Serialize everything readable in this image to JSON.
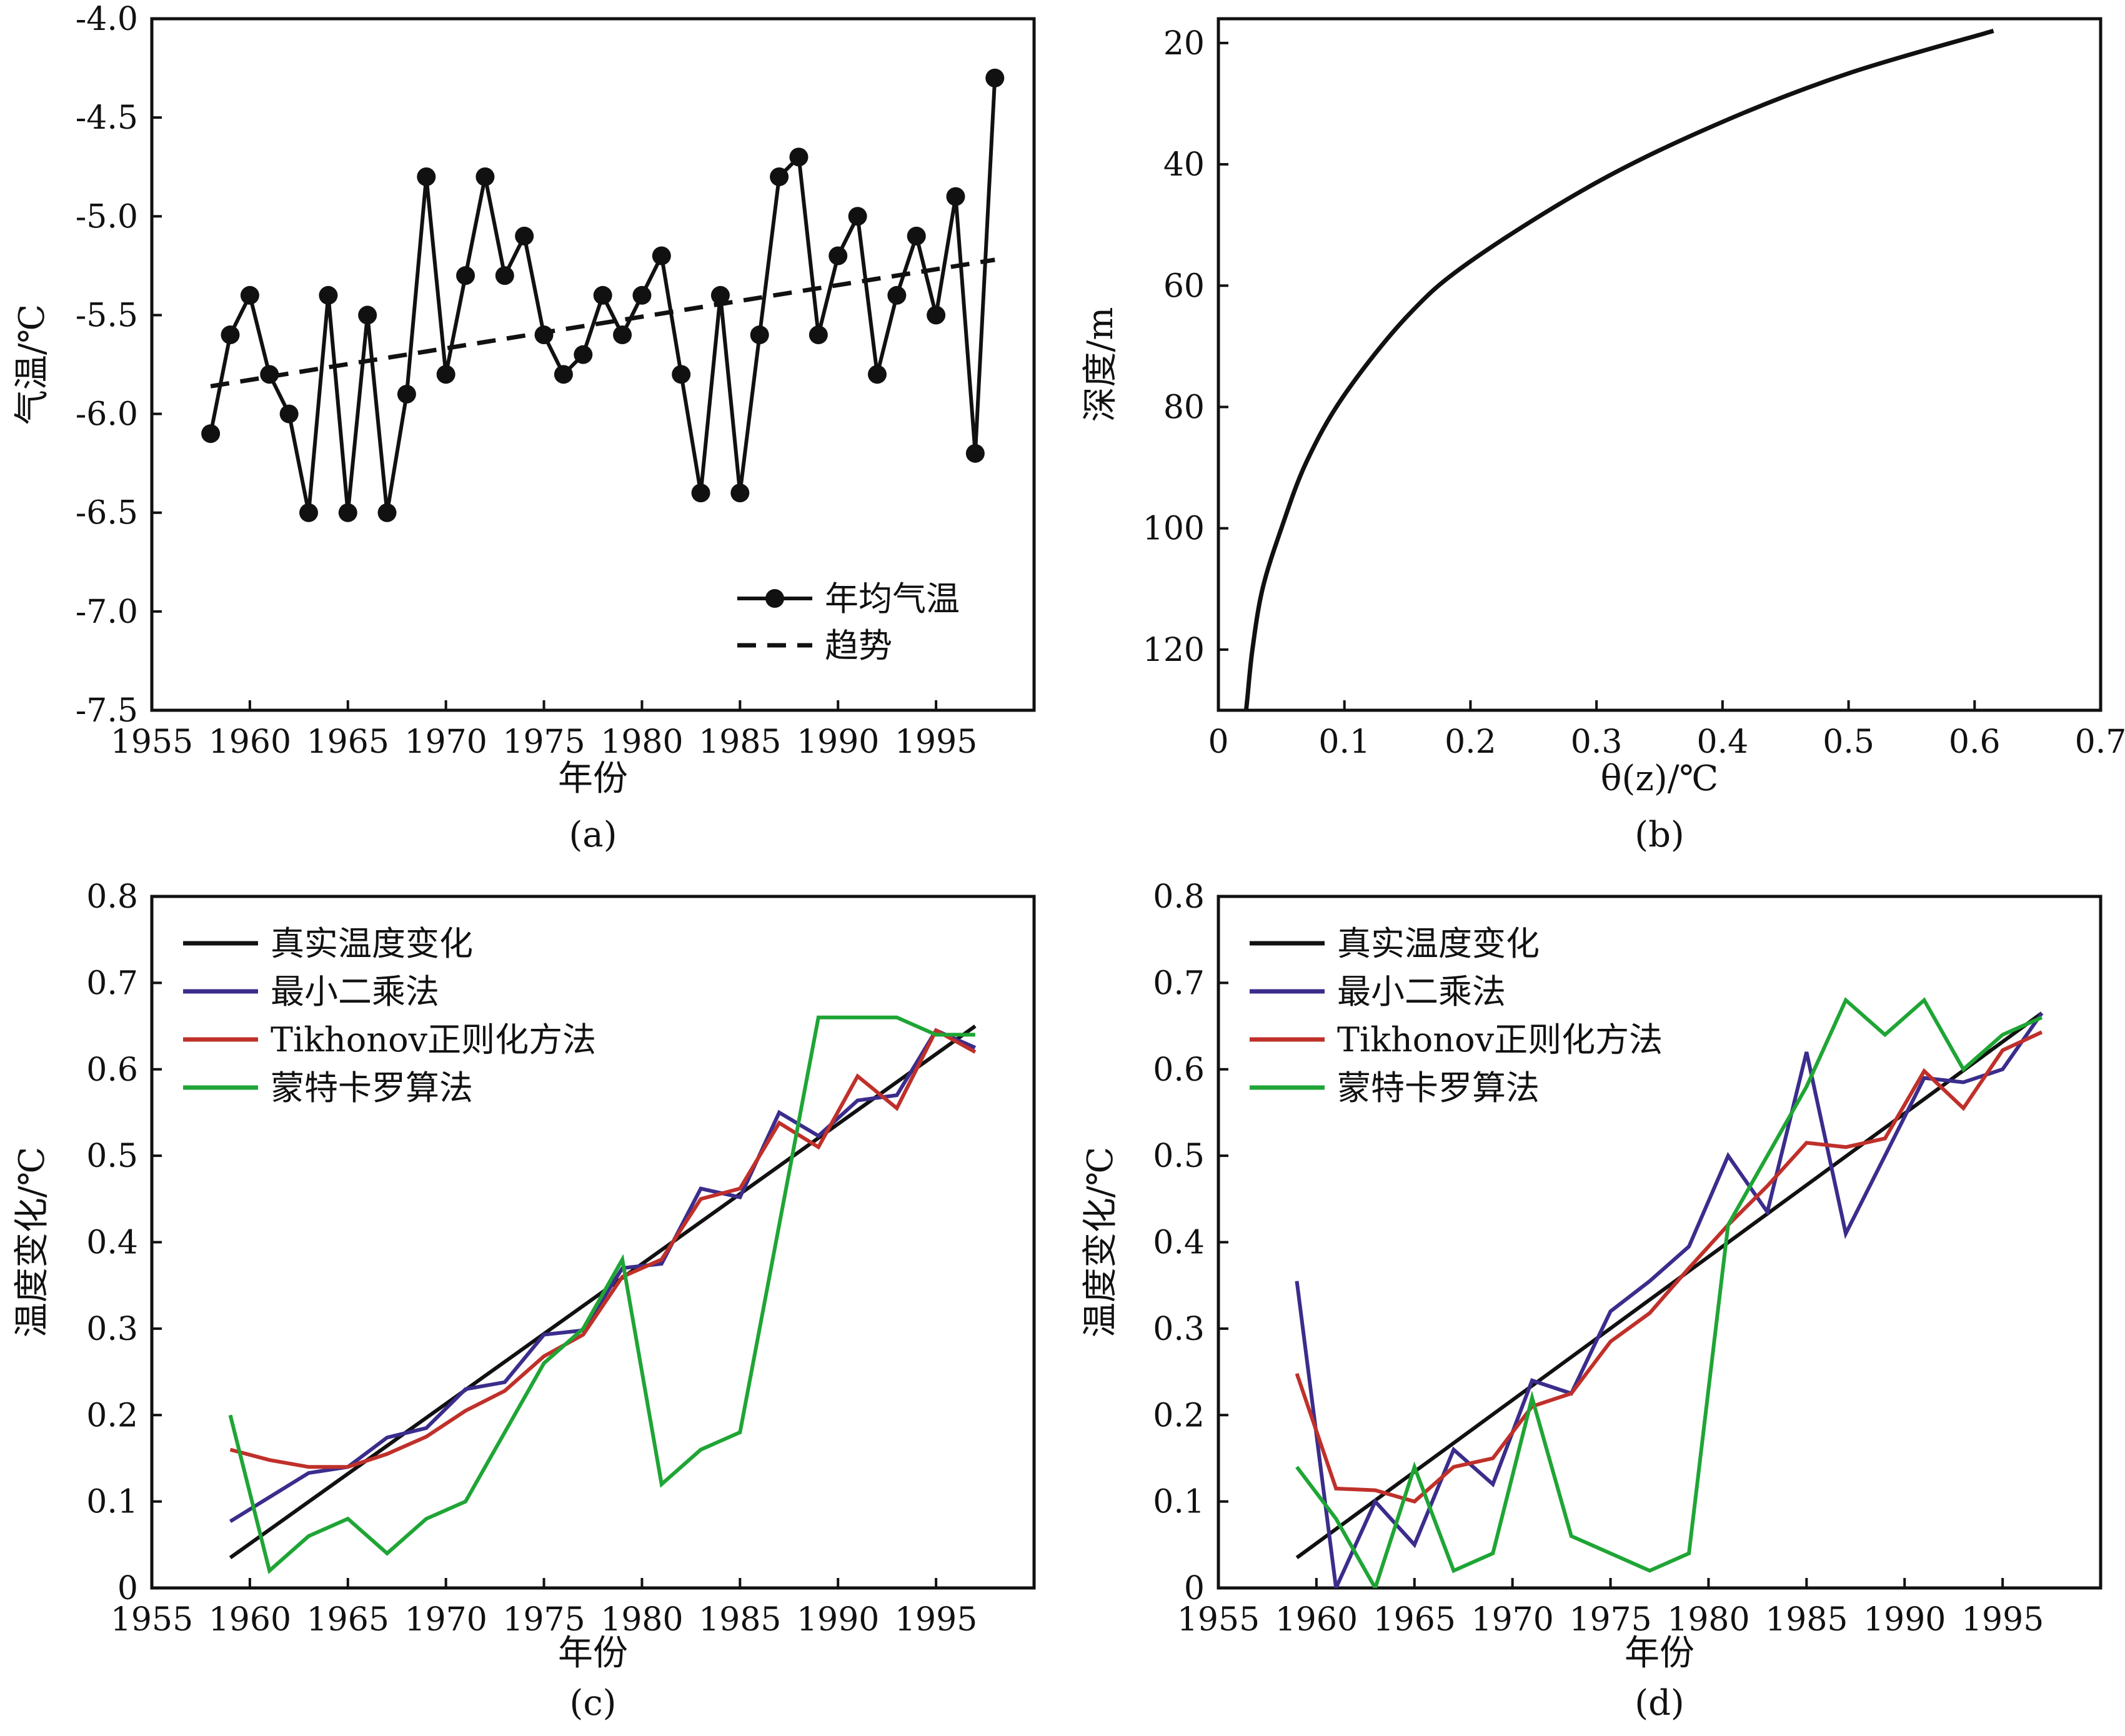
{
  "chart_data": [
    {
      "panel": "(a)",
      "type": "line",
      "xlabel": "年份",
      "ylabel": "气温/℃",
      "xlim": [
        1955,
        2000
      ],
      "ylim": [
        -7.5,
        -4.0
      ],
      "xticks": [
        1955,
        1960,
        1965,
        1970,
        1975,
        1980,
        1985,
        1990,
        1995
      ],
      "xtick_labels": [
        "1955",
        "1960",
        "1965",
        "1970",
        "1975",
        "1980",
        "1985",
        "1990",
        "1995"
      ],
      "yticks": [
        -4.0,
        -4.5,
        -5.0,
        -5.5,
        -6.0,
        -6.5,
        -7.0,
        -7.5
      ],
      "ytick_labels": [
        "-4.0",
        "-4.5",
        "-5.0",
        "-5.5",
        "-6.0",
        "-6.5",
        "-7.0",
        "-7.5"
      ],
      "legend_position": "bottom-right",
      "series": [
        {
          "name": "年均气温",
          "style": "solid-markers",
          "color": "#111111",
          "x": [
            1958,
            1959,
            1960,
            1961,
            1962,
            1963,
            1964,
            1965,
            1966,
            1967,
            1968,
            1969,
            1970,
            1971,
            1972,
            1973,
            1974,
            1975,
            1976,
            1977,
            1978,
            1979,
            1980,
            1981,
            1982,
            1983,
            1984,
            1985,
            1986,
            1987,
            1988,
            1989,
            1990,
            1991,
            1992,
            1993,
            1994,
            1995,
            1996,
            1997,
            1998
          ],
          "y": [
            -6.1,
            -5.6,
            -5.4,
            -5.8,
            -6.0,
            -6.5,
            -5.4,
            -6.5,
            -5.5,
            -6.5,
            -5.9,
            -4.8,
            -5.8,
            -5.3,
            -4.8,
            -5.3,
            -5.1,
            -5.6,
            -5.8,
            -5.7,
            -5.4,
            -5.6,
            -5.4,
            -5.2,
            -5.8,
            -6.4,
            -5.4,
            -6.4,
            -5.6,
            -4.8,
            -4.7,
            -5.6,
            -5.2,
            -5.0,
            -5.8,
            -5.4,
            -5.1,
            -5.5,
            -4.9,
            -6.2,
            -4.3
          ]
        },
        {
          "name": "趋势",
          "style": "dashed",
          "color": "#111111",
          "x": [
            1958,
            1998
          ],
          "y": [
            -5.86,
            -5.22
          ]
        }
      ],
      "caption": "(a)"
    },
    {
      "panel": "(b)",
      "type": "line",
      "xlabel": "θ(z)/℃",
      "ylabel": "深度/m",
      "xlim": [
        0,
        0.7
      ],
      "ylim": [
        130,
        16
      ],
      "y_inverted": true,
      "xticks": [
        0,
        0.1,
        0.2,
        0.3,
        0.4,
        0.5,
        0.6,
        0.7
      ],
      "xtick_labels": [
        "0",
        "0.1",
        "0.2",
        "0.3",
        "0.4",
        "0.5",
        "0.6",
        "0.7"
      ],
      "yticks": [
        20,
        40,
        60,
        80,
        100,
        120
      ],
      "ytick_labels": [
        "20",
        "40",
        "60",
        "80",
        "100",
        "120"
      ],
      "series": [
        {
          "color": "#111111",
          "x": [
            0.615,
            0.5,
            0.4,
            0.3,
            0.2,
            0.15,
            0.1,
            0.07,
            0.05,
            0.035,
            0.027,
            0.023,
            0.022
          ],
          "y": [
            18,
            25,
            33,
            43,
            56,
            65,
            78,
            89,
            100,
            110,
            120,
            128,
            130
          ]
        }
      ],
      "caption": "(b)"
    },
    {
      "panel": "(c)",
      "type": "line",
      "xlabel": "年份",
      "ylabel": "温度变化/℃",
      "xlim": [
        1955,
        2000
      ],
      "ylim": [
        0,
        0.8
      ],
      "xticks": [
        1955,
        1960,
        1965,
        1970,
        1975,
        1980,
        1985,
        1990,
        1995
      ],
      "xtick_labels": [
        "1955",
        "1960",
        "1965",
        "1970",
        "1975",
        "1980",
        "1985",
        "1990",
        "1995"
      ],
      "yticks": [
        0,
        0.1,
        0.2,
        0.3,
        0.4,
        0.5,
        0.6,
        0.7,
        0.8
      ],
      "ytick_labels": [
        "0",
        "0.1",
        "0.2",
        "0.3",
        "0.4",
        "0.5",
        "0.6",
        "0.7",
        "0.8"
      ],
      "legend_position": "top-left",
      "series": [
        {
          "name": "真实温度变化",
          "color": "#111111",
          "x": [
            1959,
            1997
          ],
          "y": [
            0.035,
            0.65
          ]
        },
        {
          "name": "最小二乘法",
          "color": "#3a2d8c",
          "x": [
            1959,
            1961,
            1963,
            1965,
            1967,
            1969,
            1971,
            1973,
            1975,
            1977,
            1979,
            1981,
            1983,
            1985,
            1987,
            1989,
            1991,
            1993,
            1995,
            1997
          ],
          "y": [
            0.077,
            0.105,
            0.133,
            0.14,
            0.174,
            0.185,
            0.23,
            0.238,
            0.293,
            0.298,
            0.37,
            0.375,
            0.462,
            0.452,
            0.55,
            0.523,
            0.564,
            0.57,
            0.645,
            0.625
          ]
        },
        {
          "name": "Tikhonov正则化方法",
          "color": "#c0302a",
          "x": [
            1959,
            1961,
            1963,
            1965,
            1967,
            1969,
            1971,
            1973,
            1975,
            1977,
            1979,
            1981,
            1983,
            1985,
            1987,
            1989,
            1991,
            1993,
            1995,
            1997
          ],
          "y": [
            0.16,
            0.148,
            0.14,
            0.14,
            0.155,
            0.175,
            0.205,
            0.228,
            0.268,
            0.293,
            0.36,
            0.38,
            0.45,
            0.462,
            0.538,
            0.51,
            0.592,
            0.555,
            0.645,
            0.62
          ]
        },
        {
          "name": "蒙特卡罗算法",
          "color": "#1fa535",
          "x": [
            1959,
            1961,
            1963,
            1965,
            1967,
            1969,
            1971,
            1973,
            1975,
            1977,
            1979,
            1981,
            1983,
            1985,
            1987,
            1989,
            1991,
            1993,
            1995,
            1997
          ],
          "y": [
            0.2,
            0.02,
            0.06,
            0.08,
            0.04,
            0.08,
            0.1,
            0.18,
            0.26,
            0.3,
            0.38,
            0.12,
            0.16,
            0.18,
            0.42,
            0.66,
            0.66,
            0.66,
            0.64,
            0.64
          ]
        }
      ],
      "caption": "(c)"
    },
    {
      "panel": "(d)",
      "type": "line",
      "xlabel": "年份",
      "ylabel": "温度变化/℃",
      "xlim": [
        1955,
        2000
      ],
      "ylim": [
        0,
        0.8
      ],
      "xticks": [
        1955,
        1960,
        1965,
        1970,
        1975,
        1980,
        1985,
        1990,
        1995
      ],
      "xtick_labels": [
        "1955",
        "1960",
        "1965",
        "1970",
        "1975",
        "1980",
        "1985",
        "1990",
        "1995"
      ],
      "yticks": [
        0,
        0.1,
        0.2,
        0.3,
        0.4,
        0.5,
        0.6,
        0.7,
        0.8
      ],
      "ytick_labels": [
        "0",
        "0.1",
        "0.2",
        "0.3",
        "0.4",
        "0.5",
        "0.6",
        "0.7",
        "0.8"
      ],
      "legend_position": "top-left",
      "series": [
        {
          "name": "真实温度变化",
          "color": "#111111",
          "x": [
            1959,
            1997
          ],
          "y": [
            0.035,
            0.665
          ]
        },
        {
          "name": "最小二乘法",
          "color": "#3a2d8c",
          "x": [
            1959,
            1961,
            1963,
            1965,
            1967,
            1969,
            1971,
            1973,
            1975,
            1977,
            1979,
            1981,
            1983,
            1985,
            1987,
            1989,
            1991,
            1993,
            1995,
            1997
          ],
          "y": [
            0.355,
            0.0,
            0.1,
            0.05,
            0.16,
            0.12,
            0.24,
            0.225,
            0.32,
            0.355,
            0.395,
            0.5,
            0.435,
            0.62,
            0.41,
            0.5,
            0.59,
            0.585,
            0.6,
            0.665
          ]
        },
        {
          "name": "Tikhonov正则化方法",
          "color": "#c0302a",
          "x": [
            1959,
            1961,
            1963,
            1965,
            1967,
            1969,
            1971,
            1973,
            1975,
            1977,
            1979,
            1981,
            1983,
            1985,
            1987,
            1989,
            1991,
            1993,
            1995,
            1997
          ],
          "y": [
            0.248,
            0.115,
            0.113,
            0.1,
            0.14,
            0.15,
            0.21,
            0.225,
            0.285,
            0.318,
            0.37,
            0.42,
            0.465,
            0.515,
            0.51,
            0.52,
            0.598,
            0.555,
            0.622,
            0.643
          ]
        },
        {
          "name": "蒙特卡罗算法",
          "color": "#1fa535",
          "x": [
            1959,
            1961,
            1963,
            1965,
            1967,
            1969,
            1971,
            1973,
            1975,
            1977,
            1979,
            1981,
            1983,
            1985,
            1987,
            1989,
            1991,
            1993,
            1995,
            1997
          ],
          "y": [
            0.14,
            0.08,
            0.0,
            0.14,
            0.02,
            0.04,
            0.22,
            0.06,
            0.04,
            0.02,
            0.04,
            0.42,
            0.5,
            0.58,
            0.68,
            0.64,
            0.68,
            0.6,
            0.64,
            0.66
          ]
        }
      ],
      "caption": "(d)"
    }
  ]
}
